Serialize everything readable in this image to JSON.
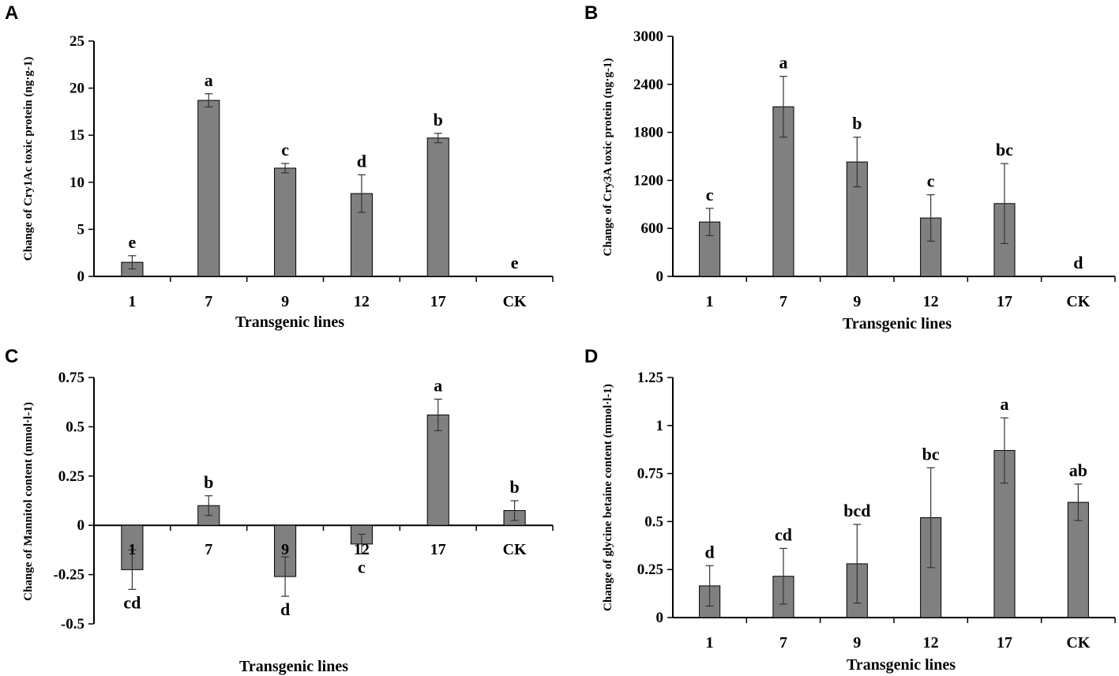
{
  "chart_data": [
    {
      "panel": "A",
      "type": "bar",
      "categories": [
        "1",
        "7",
        "9",
        "12",
        "17",
        "CK"
      ],
      "values": [
        1.5,
        18.7,
        11.5,
        8.8,
        14.7,
        0
      ],
      "errors": [
        0.7,
        0.7,
        0.5,
        2.0,
        0.5,
        0
      ],
      "significance": [
        "e",
        "a",
        "c",
        "d",
        "b",
        "e"
      ],
      "xlabel": "Transgenic lines",
      "ylabel": "Change of Cry1Ac toxic protein (ng·g-1)",
      "ylim": [
        0,
        25
      ],
      "yticks": [
        0,
        5,
        10,
        15,
        20,
        25
      ],
      "ytick_labels": [
        "0",
        "5",
        "10",
        "15",
        "20",
        "25"
      ]
    },
    {
      "panel": "B",
      "type": "bar",
      "categories": [
        "1",
        "7",
        "9",
        "12",
        "17",
        "CK"
      ],
      "values": [
        680,
        2120,
        1430,
        730,
        910,
        0
      ],
      "errors": [
        170,
        380,
        310,
        290,
        500,
        0
      ],
      "significance": [
        "c",
        "a",
        "b",
        "c",
        "bc",
        "d"
      ],
      "xlabel": "Transgenic lines",
      "ylabel": "Change of Cry3A toxic protein (ng·g-1)",
      "ylim": [
        0,
        3000
      ],
      "yticks": [
        0,
        600,
        1200,
        1800,
        2400,
        3000
      ],
      "ytick_labels": [
        "0",
        "600",
        "1200",
        "1800",
        "2400",
        "3000"
      ]
    },
    {
      "panel": "C",
      "type": "bar",
      "categories": [
        "1",
        "7",
        "9",
        "12",
        "17",
        "CK"
      ],
      "values": [
        -0.225,
        0.1,
        -0.26,
        -0.095,
        0.56,
        0.075
      ],
      "errors": [
        0.1,
        0.05,
        0.1,
        0.05,
        0.08,
        0.05
      ],
      "significance": [
        "cd",
        "b",
        "d",
        "c",
        "a",
        "b"
      ],
      "xlabel": "Transgenic lines",
      "ylabel": "Change of Mannitol content (mmol·l-1)",
      "ylim": [
        -0.5,
        0.75
      ],
      "yticks": [
        -0.5,
        -0.25,
        0,
        0.25,
        0.5,
        0.75
      ],
      "ytick_labels": [
        "-0.5",
        "-0.25",
        "0",
        "0.25",
        "0.5",
        "0.75"
      ]
    },
    {
      "panel": "D",
      "type": "bar",
      "categories": [
        "1",
        "7",
        "9",
        "12",
        "17",
        "CK"
      ],
      "values": [
        0.165,
        0.215,
        0.28,
        0.52,
        0.87,
        0.6
      ],
      "errors": [
        0.105,
        0.145,
        0.205,
        0.26,
        0.17,
        0.095
      ],
      "significance": [
        "d",
        "cd",
        "bcd",
        "bc",
        "a",
        "ab"
      ],
      "xlabel": "Transgenic lines",
      "ylabel": "Change of glycine betaine content (mmol·l-1)",
      "ylim": [
        0,
        1.25
      ],
      "yticks": [
        0,
        0.25,
        0.5,
        0.75,
        1,
        1.25
      ],
      "ytick_labels": [
        "0",
        "0.25",
        "0.5",
        "0.75",
        "1",
        "1.25"
      ]
    }
  ]
}
